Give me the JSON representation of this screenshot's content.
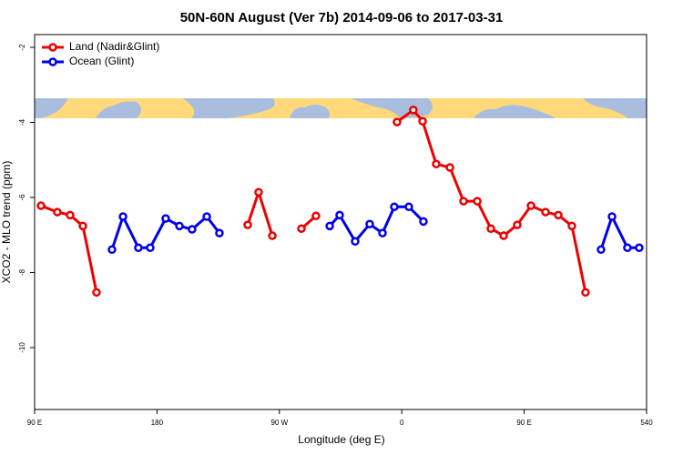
{
  "chart_data": {
    "type": "line",
    "title": "50N-60N August (Ver 7b)   2014-09-06 to 2017-03-31",
    "xlabel": "Longitude (deg E)",
    "ylabel": "XCO2 - MLO trend (ppm)",
    "xlim": [
      90,
      540
    ],
    "ylim": [
      -11.65,
      -1.66
    ],
    "xticks": [
      {
        "value": 90,
        "label": "90 E"
      },
      180,
      {
        "value": 270,
        "label": "90 W"
      },
      {
        "value": 360,
        "label": "0"
      },
      {
        "value": 450,
        "label": "90 E"
      },
      540
    ],
    "yticks": [
      -2,
      -4,
      -6,
      -8,
      -10
    ],
    "legend": "upper left",
    "series": [
      {
        "name": "Land (Nadir&Glint)",
        "color": "#ee0000",
        "x": [
          94.7,
          106.7,
          116.1,
          125.5,
          135.5,
          null,
          246.7,
          254.7,
          264.8,
          null,
          286.2,
          296.9,
          null,
          356.5,
          368.5,
          375.3,
          385.3,
          395.4,
          405.4,
          415.5,
          425.5,
          434.9,
          444.9,
          455.0,
          465.7,
          475.1,
          485.1,
          495.1
        ],
        "values": [
          -6.22,
          -6.39,
          -6.47,
          -6.76,
          -8.53,
          null,
          -6.73,
          -5.86,
          -7.02,
          null,
          -6.83,
          -6.49,
          null,
          -3.99,
          -3.67,
          -3.97,
          -5.11,
          -5.2,
          -6.1,
          -6.1,
          -6.83,
          -7.02,
          -6.73,
          -6.22,
          -6.39,
          -6.47,
          -6.76,
          -8.53
        ]
      },
      {
        "name": "Ocean (Glint)",
        "color": "#0000ee",
        "x": [
          146.9,
          155.0,
          166.3,
          175.0,
          186.4,
          196.5,
          205.8,
          216.6,
          225.9,
          null,
          307.0,
          314.3,
          325.7,
          336.4,
          345.8,
          354.5,
          365.2,
          375.9,
          null,
          506.5,
          514.6,
          525.9,
          534.6
        ],
        "values": [
          -7.39,
          -6.51,
          -7.34,
          -7.34,
          -6.56,
          -6.76,
          -6.85,
          -6.51,
          -6.95,
          null,
          -6.76,
          -6.47,
          -7.17,
          -6.71,
          -6.95,
          -6.25,
          -6.25,
          -6.64,
          null,
          -7.39,
          -6.51,
          -7.34,
          -7.34
        ]
      }
    ]
  }
}
